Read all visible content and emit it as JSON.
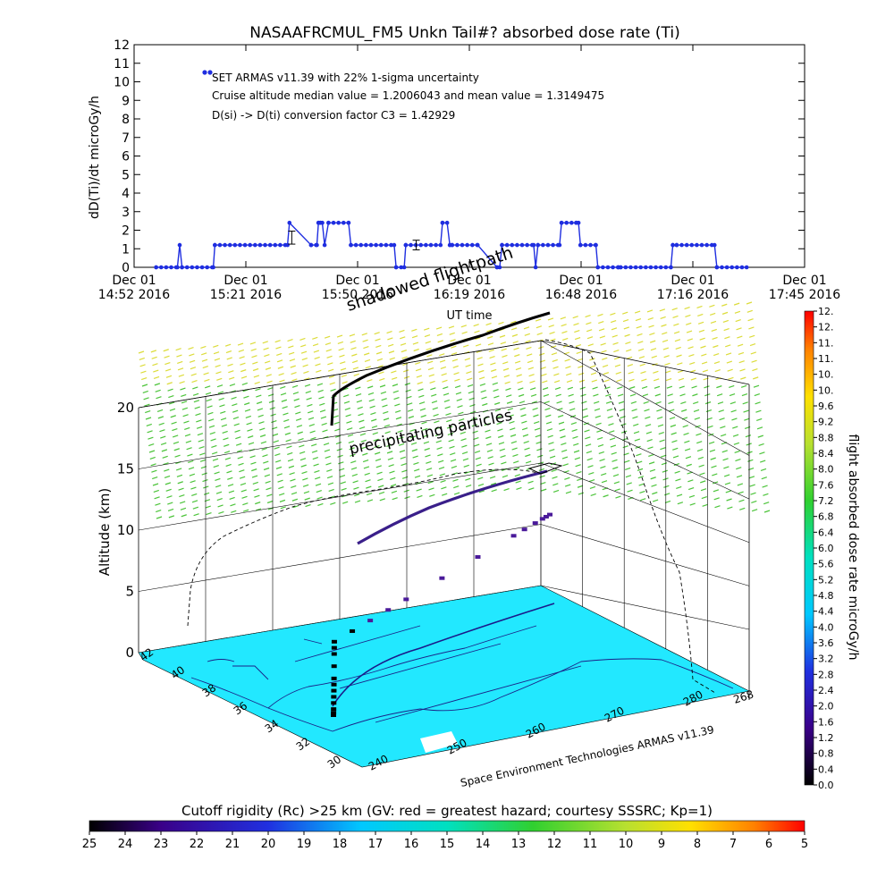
{
  "chart_data": [
    {
      "type": "line",
      "title": "NASAAFRCMUL_FM5 Unkn Tail#? absorbed dose rate (Ti)",
      "ylabel": "dD(Ti)/dt microGy/h",
      "xlabel": "UT time",
      "ylim": [
        0,
        12
      ],
      "yticks": [
        "0",
        "1",
        "2",
        "3",
        "4",
        "5",
        "6",
        "7",
        "8",
        "9",
        "10",
        "11",
        "12"
      ],
      "xticks": [
        {
          "top": "Dec 01",
          "bottom": "14:52 2016"
        },
        {
          "top": "Dec 01",
          "bottom": "15:21 2016"
        },
        {
          "top": "Dec 01",
          "bottom": "15:50 2016"
        },
        {
          "top": "Dec 01",
          "bottom": "16:19 2016"
        },
        {
          "top": "Dec 01",
          "bottom": "16:48 2016"
        },
        {
          "top": "Dec 01",
          "bottom": "17:16 2016"
        },
        {
          "top": "Dec 01",
          "bottom": "17:45 2016"
        }
      ],
      "x_unit": "minutes after 14:52 UT",
      "xlim": [
        0,
        173.5
      ],
      "legend_lines": [
        "SET ARMAS v11.39 with 22% 1-sigma uncertainty",
        "Cruise altitude median value = 1.2006043 and mean value = 1.3149475",
        "D(si) -> D(ti) conversion factor C3 = 1.42929"
      ],
      "series": [
        {
          "color": "#1f2ee0",
          "x": [
            5.7,
            11.2,
            11.8,
            12.4,
            20.5,
            20.9,
            39.7,
            40.2,
            45.8,
            47.3,
            47.7,
            48.2,
            48.7,
            49.3,
            50.3,
            55.5,
            56.1,
            67.3,
            67.8,
            69.9,
            70.3,
            79.3,
            79.8,
            81.0,
            81.7,
            82.3,
            88.9,
            93.9,
            94.6,
            95.2,
            103.4,
            103.9,
            104.5,
            110.1,
            110.6,
            114.4,
            115.0,
            115.5,
            119.5,
            120.0,
            125.3,
            125.9,
            138.9,
            139.4,
            140.4,
            150.2,
            150.8,
            158.5
          ],
          "y": [
            0,
            0,
            1.2,
            0,
            0,
            1.2,
            1.2,
            2.4,
            1.2,
            1.2,
            2.4,
            2.4,
            2.4,
            1.2,
            2.4,
            2.4,
            1.2,
            1.2,
            0,
            0,
            1.2,
            1.2,
            2.4,
            2.4,
            1.2,
            1.2,
            1.2,
            0,
            0,
            1.2,
            1.2,
            0,
            1.2,
            1.2,
            2.4,
            2.4,
            2.4,
            1.2,
            1.2,
            0,
            0,
            0,
            0,
            1.2,
            1.2,
            1.2,
            0,
            0
          ]
        }
      ],
      "error_bars": [
        {
          "x": 40.8,
          "y": 1.6,
          "err": 0.35
        },
        {
          "x": 73.0,
          "y": 1.2,
          "err": 0.26
        }
      ]
    },
    {
      "type": "scatter",
      "title": "",
      "zlabel": "Altitude (km)",
      "zticks": [
        "0",
        "5",
        "10",
        "15",
        "20"
      ],
      "zlim": [
        0,
        20
      ],
      "lat_ticks": [
        "30",
        "32",
        "34",
        "36",
        "38",
        "40",
        "42"
      ],
      "lon_ticks": [
        "240",
        "250",
        "260",
        "270",
        "280"
      ],
      "lon_axis_end_label": "268",
      "credit": "Space Environment Technologies ARMAS v11.39",
      "annotations": [
        "shadowed flightpath",
        "precipitating particles"
      ],
      "flight_altitude_km": [
        0,
        0.2,
        0.5,
        1,
        1.5,
        2,
        2.5,
        3,
        4,
        5,
        5.5,
        6,
        6.5,
        7,
        7.5,
        8,
        9,
        10,
        11,
        11.3,
        11.6,
        11.8,
        11.9,
        12
      ],
      "precipitating_particles_altitude_km": 20
    }
  ],
  "colorbar_right": {
    "label": "flight absorbed dose rate microGy/h",
    "ticks": [
      "0.0",
      "0.4",
      "0.8",
      "1.2",
      "1.6",
      "2.0",
      "2.4",
      "2.8",
      "3.2",
      "3.6",
      "4.0",
      "4.4",
      "4.8",
      "5.2",
      "5.6",
      "6.0",
      "6.4",
      "6.8",
      "7.2",
      "7.6",
      "8.0",
      "8.4",
      "8.8",
      "9.2",
      "9.6",
      "10.",
      "10.",
      "11.",
      "11.",
      "12.",
      "12."
    ],
    "range": [
      0,
      12
    ]
  },
  "colorbar_bottom": {
    "title": "Cutoff rigidity (Rc) >25 km (GV: red = greatest hazard; courtesy SSSRC; Kp=1)",
    "ticks": [
      "25",
      "24",
      "23",
      "22",
      "21",
      "20",
      "19",
      "18",
      "17",
      "16",
      "15",
      "14",
      "13",
      "12",
      "11",
      "10",
      "9",
      "8",
      "7",
      "6",
      "5"
    ],
    "range": [
      25,
      5
    ]
  },
  "colors": {
    "data_blue": "#1f2ee0",
    "ground_cyan": "#22e8ff",
    "particles_low": "#4cc43a",
    "particles_high": "#dcdc3a"
  }
}
